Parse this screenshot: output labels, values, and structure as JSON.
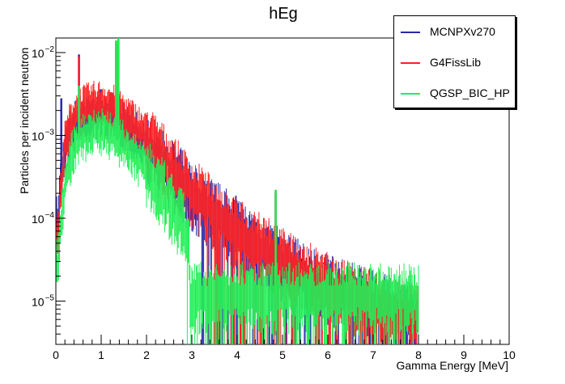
{
  "chart_data": {
    "type": "histogram",
    "title": "hEg",
    "xlabel": "Gamma Energy [MeV]",
    "ylabel": "Particles per incident neutron",
    "xlim": [
      0,
      10
    ],
    "ylim": [
      3e-06,
      0.015
    ],
    "yscale": "log",
    "x_ticks": [
      "0",
      "1",
      "2",
      "3",
      "4",
      "5",
      "6",
      "7",
      "8",
      "9",
      "10"
    ],
    "y_ticks": [
      {
        "value": 1e-05,
        "label": "10",
        "exp": "−5"
      },
      {
        "value": 0.0001,
        "label": "10",
        "exp": "−4"
      },
      {
        "value": 0.001,
        "label": "10",
        "exp": "−3"
      },
      {
        "value": 0.01,
        "label": "10",
        "exp": "−2"
      }
    ],
    "legend_position": "top-right",
    "series": [
      {
        "name": "MCNPXv270",
        "color": "#2828a8",
        "x": [
          0.05,
          0.1,
          0.2,
          0.3,
          0.4,
          0.5,
          0.6,
          0.8,
          1.0,
          1.2,
          1.4,
          1.6,
          1.8,
          2.0,
          2.2,
          2.4,
          2.6,
          2.8,
          3.0,
          3.4,
          3.8,
          4.2,
          4.6,
          5.0,
          5.5,
          6.0,
          6.5,
          7.0,
          7.5,
          8.0
        ],
        "y": [
          0.0001,
          0.0003,
          0.0007,
          0.0011,
          0.0014,
          0.0016,
          0.0017,
          0.0019,
          0.002,
          0.0018,
          0.0016,
          0.0013,
          0.001,
          0.0008,
          0.0006,
          0.00045,
          0.00035,
          0.00027,
          0.0002,
          0.00013,
          9e-05,
          6e-05,
          4e-05,
          3e-05,
          2e-05,
          1.5e-05,
          1.2e-05,
          1e-05,
          8e-06,
          7e-06
        ],
        "peaks": [
          {
            "x": 0.12,
            "y": 0.0028
          },
          {
            "x": 0.51,
            "y": 0.0095
          },
          {
            "x": 1.33,
            "y": 0.013
          },
          {
            "x": 1.38,
            "y": 0.015
          },
          {
            "x": 4.85,
            "y": 0.0002
          }
        ]
      },
      {
        "name": "G4FissLib",
        "color": "#ff2020",
        "x": [
          0.05,
          0.1,
          0.2,
          0.3,
          0.4,
          0.5,
          0.6,
          0.8,
          1.0,
          1.2,
          1.4,
          1.6,
          1.8,
          2.0,
          2.2,
          2.4,
          2.6,
          2.8,
          3.0,
          3.4,
          3.8,
          4.2,
          4.6,
          5.0,
          5.5,
          6.0,
          6.5,
          7.0,
          7.5,
          8.0
        ],
        "y": [
          6e-05,
          0.0002,
          0.0008,
          0.0013,
          0.0017,
          0.002,
          0.0022,
          0.0024,
          0.0025,
          0.0023,
          0.002,
          0.0016,
          0.0013,
          0.001,
          0.00075,
          0.00055,
          0.0004,
          0.0003,
          0.00022,
          0.00014,
          9e-05,
          6e-05,
          4.5e-05,
          3.2e-05,
          2.2e-05,
          1.6e-05,
          1.2e-05,
          1e-05,
          8e-06,
          7e-06
        ],
        "peaks": [
          {
            "x": 0.51,
            "y": 0.009
          },
          {
            "x": 1.33,
            "y": 0.014
          },
          {
            "x": 1.38,
            "y": 0.015
          },
          {
            "x": 4.85,
            "y": 0.00022
          }
        ]
      },
      {
        "name": "QGSP_BIC_HP",
        "color": "#22ee55",
        "x": [
          0.05,
          0.1,
          0.2,
          0.3,
          0.4,
          0.5,
          0.6,
          0.8,
          1.0,
          1.2,
          1.4,
          1.6,
          1.8,
          2.0,
          2.2,
          2.4,
          2.6,
          2.8,
          2.95
        ],
        "y": [
          3e-05,
          8e-05,
          0.00025,
          0.0005,
          0.0007,
          0.0009,
          0.001,
          0.0012,
          0.0012,
          0.0011,
          0.0009,
          0.0007,
          0.00055,
          0.0004,
          0.00028,
          0.0002,
          0.00013,
          9e-05,
          5e-05
        ],
        "tail_y": 1.2e-05,
        "peaks": [
          {
            "x": 0.51,
            "y": 0.004
          },
          {
            "x": 1.33,
            "y": 0.014
          },
          {
            "x": 1.38,
            "y": 0.015
          },
          {
            "x": 4.85,
            "y": 0.00022
          }
        ]
      }
    ]
  }
}
